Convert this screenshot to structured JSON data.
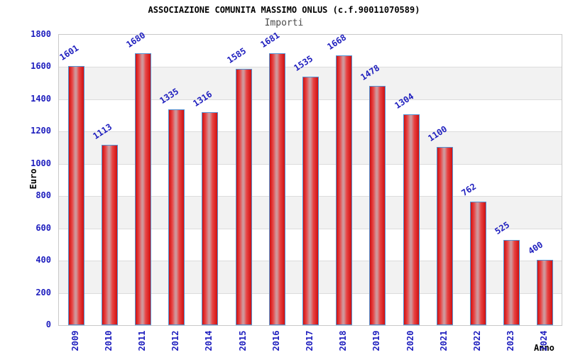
{
  "header": {
    "title": "ASSOCIAZIONE COMUNITA MASSIMO ONLUS (c.f.90011070589)",
    "subtitle": "Importi"
  },
  "chart_data": {
    "type": "bar",
    "title": "ASSOCIAZIONE COMUNITA MASSIMO ONLUS (c.f.90011070589)",
    "subtitle": "Importi",
    "xlabel": "Anno",
    "ylabel": "Euro",
    "categories": [
      "2009",
      "2010",
      "2011",
      "2012",
      "2014",
      "2015",
      "2016",
      "2017",
      "2018",
      "2019",
      "2020",
      "2021",
      "2022",
      "2023",
      "2024"
    ],
    "values": [
      1601,
      1113,
      1680,
      1335,
      1316,
      1585,
      1681,
      1535,
      1668,
      1478,
      1304,
      1100,
      762,
      525,
      400
    ],
    "ylim": [
      0,
      1800
    ],
    "yticks": [
      0,
      200,
      400,
      600,
      800,
      1000,
      1200,
      1400,
      1600,
      1800
    ],
    "grid": "horizontal gridlines with alternating gray bands",
    "legend": "none",
    "bar_value_labels_rotated": true,
    "x_labels_rotated_vertical": true,
    "colors": {
      "label_blue": "#1e1ebe",
      "title_black": "#000000",
      "subtitle_gray": "#4a4a4a",
      "band_gray": "#f2f2f2",
      "grid_line": "#dcdcdc",
      "plot_border": "#c9c9c9",
      "bar_border": "#5293d3",
      "bar_red_dark": "#d01010",
      "bar_red_mid": "#e84444",
      "bar_highlight": "#d0969a",
      "background": "#ffffff"
    }
  }
}
